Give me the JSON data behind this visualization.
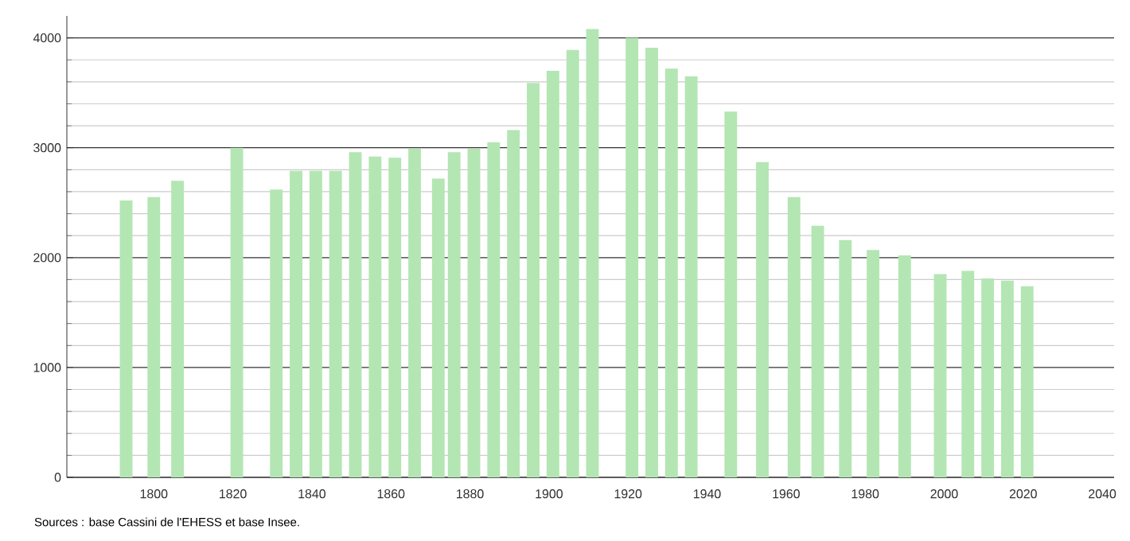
{
  "chart_data": {
    "type": "bar",
    "color": "#b3e6b3",
    "x": [
      1793,
      1800,
      1806,
      1821,
      1831,
      1836,
      1841,
      1846,
      1851,
      1856,
      1861,
      1866,
      1872,
      1876,
      1881,
      1886,
      1891,
      1896,
      1901,
      1906,
      1911,
      1921,
      1926,
      1931,
      1936,
      1946,
      1954,
      1962,
      1968,
      1975,
      1982,
      1990,
      1999,
      2006,
      2011,
      2016,
      2021
    ],
    "values": [
      2520,
      2550,
      2700,
      3000,
      2620,
      2790,
      2790,
      2790,
      2960,
      2920,
      2910,
      2990,
      2720,
      2960,
      2990,
      3050,
      3160,
      3590,
      3700,
      3890,
      4080,
      4000,
      3910,
      3720,
      3650,
      3330,
      2870,
      2550,
      2290,
      2160,
      2070,
      2020,
      1850,
      1880,
      1810,
      1790,
      1740
    ],
    "xlim": [
      1778,
      2043
    ],
    "ylim": [
      0,
      4200
    ],
    "xticks": [
      1800,
      1820,
      1840,
      1860,
      1880,
      1900,
      1920,
      1940,
      1960,
      1980,
      2000,
      2020,
      2040
    ],
    "yticks": [
      0,
      1000,
      2000,
      3000,
      4000
    ],
    "grid": "y",
    "annotations": [
      "Sources : base Cassini de l'EHESS et base Insee."
    ]
  }
}
